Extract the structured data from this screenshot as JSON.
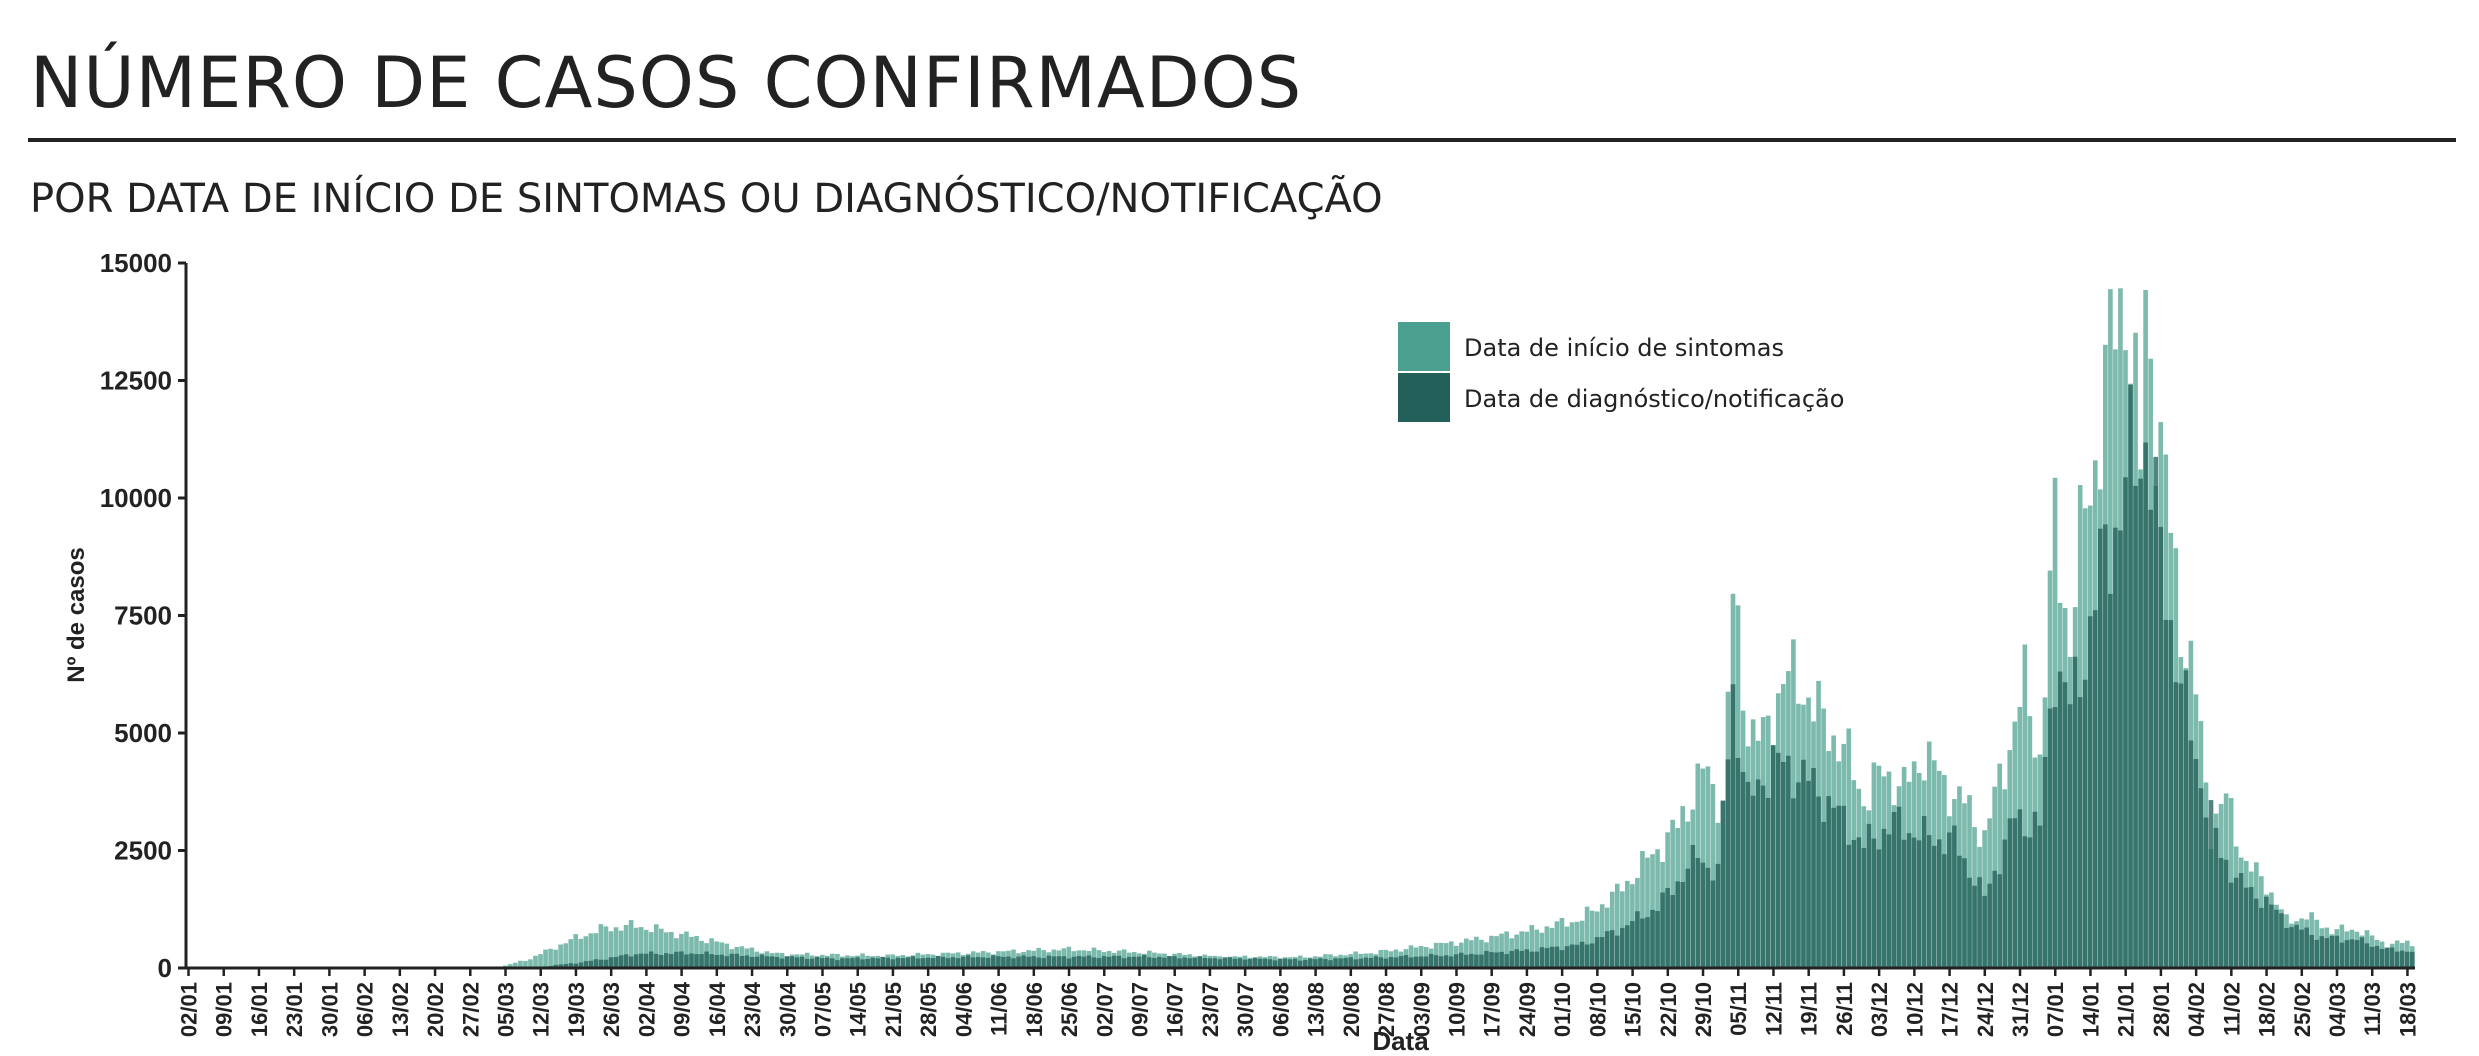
{
  "title": "NÚMERO DE CASOS CONFIRMADOS",
  "subtitle": "POR DATA DE INÍCIO DE SINTOMAS OU DIAGNÓSTICO/NOTIFICAÇÃO",
  "chart_data": {
    "type": "bar",
    "xlabel": "Data",
    "ylabel": "Nº de casos",
    "ylim": [
      0,
      15000
    ],
    "yticks": [
      0,
      2500,
      5000,
      7500,
      10000,
      12500,
      15000
    ],
    "xrange": [
      "2020-01-02",
      "2021-03-20"
    ],
    "xtick_labels": [
      "02/01",
      "09/01",
      "16/01",
      "23/01",
      "30/01",
      "06/02",
      "13/02",
      "20/02",
      "27/02",
      "05/03",
      "12/03",
      "19/03",
      "26/03",
      "02/04",
      "09/04",
      "16/04",
      "23/04",
      "30/04",
      "07/05",
      "14/05",
      "21/05",
      "28/05",
      "04/06",
      "11/06",
      "18/06",
      "25/06",
      "02/07",
      "09/07",
      "16/07",
      "23/07",
      "30/07",
      "06/08",
      "13/08",
      "20/08",
      "27/08",
      "03/09",
      "10/09",
      "17/09",
      "24/09",
      "01/10",
      "08/10",
      "15/10",
      "22/10",
      "29/10",
      "05/11",
      "12/11",
      "19/11",
      "26/11",
      "03/12",
      "10/12",
      "17/12",
      "24/12",
      "31/12",
      "07/01",
      "14/01",
      "21/01",
      "28/01",
      "04/02",
      "11/02",
      "18/02",
      "25/02",
      "04/03",
      "11/03",
      "18/03"
    ],
    "grid": false,
    "legend_position": "top-right",
    "series": [
      {
        "name": "Data de início de sintomas",
        "color": "#4a9f8e",
        "points": [
          [
            "2020-03-01",
            0
          ],
          [
            "2020-03-05",
            50
          ],
          [
            "2020-03-10",
            200
          ],
          [
            "2020-03-15",
            450
          ],
          [
            "2020-03-20",
            680
          ],
          [
            "2020-03-25",
            850
          ],
          [
            "2020-03-31",
            900
          ],
          [
            "2020-04-05",
            800
          ],
          [
            "2020-04-12",
            650
          ],
          [
            "2020-04-20",
            450
          ],
          [
            "2020-04-28",
            300
          ],
          [
            "2020-05-05",
            280
          ],
          [
            "2020-05-20",
            260
          ],
          [
            "2020-06-05",
            320
          ],
          [
            "2020-06-25",
            400
          ],
          [
            "2020-07-10",
            330
          ],
          [
            "2020-07-25",
            240
          ],
          [
            "2020-08-10",
            230
          ],
          [
            "2020-08-25",
            330
          ],
          [
            "2020-09-05",
            480
          ],
          [
            "2020-09-15",
            620
          ],
          [
            "2020-09-25",
            800
          ],
          [
            "2020-10-05",
            1050
          ],
          [
            "2020-10-12",
            1600
          ],
          [
            "2020-10-18",
            2300
          ],
          [
            "2020-10-24",
            3000
          ],
          [
            "2020-10-29",
            4200
          ],
          [
            "2020-11-02",
            3500
          ],
          [
            "2020-11-04",
            7800
          ],
          [
            "2020-11-07",
            5200
          ],
          [
            "2020-11-10",
            4800
          ],
          [
            "2020-11-14",
            6200
          ],
          [
            "2020-11-18",
            6000
          ],
          [
            "2020-11-22",
            5200
          ],
          [
            "2020-11-26",
            4700
          ],
          [
            "2020-11-30",
            3600
          ],
          [
            "2020-12-04",
            4200
          ],
          [
            "2020-12-08",
            3800
          ],
          [
            "2020-12-12",
            4600
          ],
          [
            "2020-12-16",
            3900
          ],
          [
            "2020-12-20",
            3500
          ],
          [
            "2020-12-24",
            2800
          ],
          [
            "2020-12-28",
            4400
          ],
          [
            "2021-01-01",
            6000
          ],
          [
            "2021-01-04",
            4500
          ],
          [
            "2021-01-07",
            9400
          ],
          [
            "2021-01-10",
            7000
          ],
          [
            "2021-01-13",
            9800
          ],
          [
            "2021-01-16",
            11500
          ],
          [
            "2021-01-19",
            13800
          ],
          [
            "2021-01-21",
            14600
          ],
          [
            "2021-01-24",
            10500
          ],
          [
            "2021-01-25",
            14200
          ],
          [
            "2021-01-28",
            11000
          ],
          [
            "2021-02-01",
            7500
          ],
          [
            "2021-02-04",
            5800
          ],
          [
            "2021-02-07",
            3000
          ],
          [
            "2021-02-10",
            3600
          ],
          [
            "2021-02-14",
            2200
          ],
          [
            "2021-02-18",
            1800
          ],
          [
            "2021-02-22",
            1000
          ],
          [
            "2021-02-26",
            1100
          ],
          [
            "2021-03-03",
            800
          ],
          [
            "2021-03-08",
            820
          ],
          [
            "2021-03-14",
            500
          ],
          [
            "2021-03-18",
            550
          ],
          [
            "2021-03-20",
            450
          ]
        ]
      },
      {
        "name": "Data de diagnóstico/notificação",
        "color": "#23605a",
        "points": [
          [
            "2020-03-10",
            0
          ],
          [
            "2020-03-20",
            120
          ],
          [
            "2020-03-31",
            300
          ],
          [
            "2020-04-10",
            320
          ],
          [
            "2020-04-25",
            250
          ],
          [
            "2020-05-10",
            200
          ],
          [
            "2020-06-10",
            240
          ],
          [
            "2020-07-10",
            240
          ],
          [
            "2020-08-10",
            180
          ],
          [
            "2020-08-25",
            220
          ],
          [
            "2020-09-10",
            280
          ],
          [
            "2020-09-25",
            380
          ],
          [
            "2020-10-05",
            500
          ],
          [
            "2020-10-12",
            800
          ],
          [
            "2020-10-20",
            1300
          ],
          [
            "2020-10-28",
            2400
          ],
          [
            "2020-11-01",
            2000
          ],
          [
            "2020-11-04",
            5900
          ],
          [
            "2020-11-07",
            3500
          ],
          [
            "2020-11-12",
            4400
          ],
          [
            "2020-11-18",
            4100
          ],
          [
            "2020-11-24",
            3400
          ],
          [
            "2020-11-30",
            2600
          ],
          [
            "2020-12-06",
            3100
          ],
          [
            "2020-12-12",
            2800
          ],
          [
            "2020-12-18",
            2700
          ],
          [
            "2020-12-24",
            1500
          ],
          [
            "2020-12-30",
            3200
          ],
          [
            "2021-01-04",
            3000
          ],
          [
            "2021-01-07",
            6600
          ],
          [
            "2021-01-10",
            5500
          ],
          [
            "2021-01-14",
            7200
          ],
          [
            "2021-01-17",
            9000
          ],
          [
            "2021-01-20",
            9600
          ],
          [
            "2021-01-22",
            10800
          ],
          [
            "2021-01-25",
            11300
          ],
          [
            "2021-01-28",
            8800
          ],
          [
            "2021-02-01",
            6000
          ],
          [
            "2021-02-05",
            4000
          ],
          [
            "2021-02-09",
            2400
          ],
          [
            "2021-02-13",
            1800
          ],
          [
            "2021-02-18",
            1400
          ],
          [
            "2021-02-23",
            900
          ],
          [
            "2021-03-01",
            650
          ],
          [
            "2021-03-08",
            600
          ],
          [
            "2021-03-14",
            400
          ],
          [
            "2021-03-20",
            350
          ]
        ]
      }
    ]
  }
}
